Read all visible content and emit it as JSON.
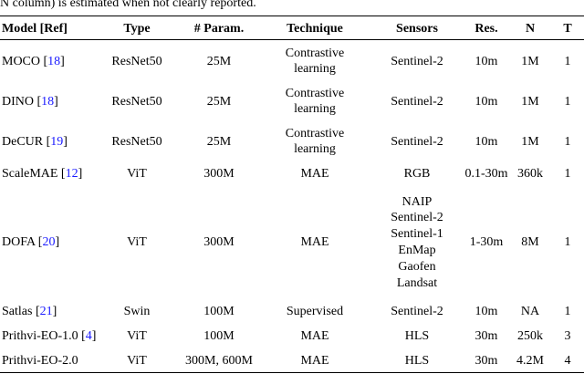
{
  "caption": "N column) is estimated when not clearly reported.",
  "table": {
    "header": [
      "Model [Ref]",
      "Type",
      "# Param.",
      "Technique",
      "Sensors",
      "Res.",
      "N",
      "T"
    ],
    "rows": [
      [
        [
          "MOCO [",
          "18",
          "]"
        ],
        [
          "ResNet50"
        ],
        [
          "25M"
        ],
        [
          "Contrastive",
          "learning"
        ],
        [
          "Sentinel-2"
        ],
        [
          "10m"
        ],
        [
          "1M"
        ],
        [
          "1"
        ]
      ],
      [
        [
          "DINO [",
          "18",
          "]"
        ],
        [
          "ResNet50"
        ],
        [
          "25M"
        ],
        [
          "Contrastive",
          "learning"
        ],
        [
          "Sentinel-2"
        ],
        [
          "10m"
        ],
        [
          "1M"
        ],
        [
          "1"
        ]
      ],
      [
        [
          "DeCUR [",
          "19",
          "]"
        ],
        [
          "ResNet50"
        ],
        [
          "25M"
        ],
        [
          "Contrastive",
          "learning"
        ],
        [
          "Sentinel-2"
        ],
        [
          "10m"
        ],
        [
          "1M"
        ],
        [
          "1"
        ]
      ],
      [
        [
          "ScaleMAE [",
          "12",
          "]"
        ],
        [
          "ViT"
        ],
        [
          "300M"
        ],
        [
          "MAE"
        ],
        [
          "RGB"
        ],
        [
          "0.1-30m"
        ],
        [
          "360k"
        ],
        [
          "1"
        ]
      ],
      [
        [
          "DOFA [",
          "20",
          "]"
        ],
        [
          "ViT"
        ],
        [
          "300M"
        ],
        [
          "MAE"
        ],
        [
          "NAIP",
          "Sentinel-2",
          "Sentinel-1",
          "EnMap",
          "Gaofen",
          "Landsat"
        ],
        [
          "1-30m"
        ],
        [
          "8M"
        ],
        [
          "1"
        ]
      ],
      [
        [
          "Satlas [",
          "21",
          "]"
        ],
        [
          "Swin"
        ],
        [
          "100M"
        ],
        [
          "Supervised"
        ],
        [
          "Sentinel-2"
        ],
        [
          "10m"
        ],
        [
          "NA"
        ],
        [
          "1"
        ]
      ],
      [
        [
          "Prithvi-EO-1.0 [",
          "4",
          "]"
        ],
        [
          "ViT"
        ],
        [
          "100M"
        ],
        [
          "MAE"
        ],
        [
          "HLS"
        ],
        [
          "30m"
        ],
        [
          "250k"
        ],
        [
          "3"
        ]
      ],
      [
        [
          "Prithvi-EO-2.0"
        ],
        [
          "ViT"
        ],
        [
          "300M, 600M"
        ],
        [
          "MAE"
        ],
        [
          "HLS"
        ],
        [
          "30m"
        ],
        [
          "4.2M"
        ],
        [
          "4"
        ]
      ]
    ]
  }
}
